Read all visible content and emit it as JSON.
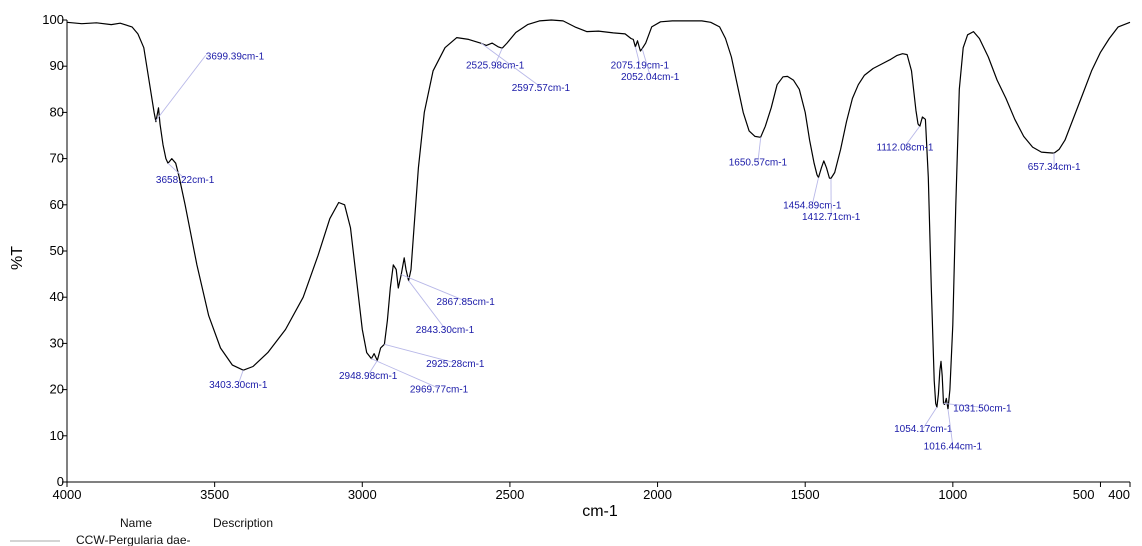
{
  "chart_data": {
    "type": "line",
    "xlabel": "cm-1",
    "ylabel": "%T",
    "xlim": [
      4000,
      400
    ],
    "ylim": [
      0,
      100
    ],
    "xticks": [
      {
        "v": 4000,
        "t": "4000"
      },
      {
        "v": 3500,
        "t": "3500"
      },
      {
        "v": 3000,
        "t": "3000"
      },
      {
        "v": 2500,
        "t": "2500"
      },
      {
        "v": 2000,
        "t": "2000"
      },
      {
        "v": 1500,
        "t": "1500"
      },
      {
        "v": 1000,
        "t": "1000"
      },
      {
        "v": 500,
        "t": "500"
      },
      {
        "v": 400,
        "t": "400"
      }
    ],
    "yticks": [
      {
        "v": 0,
        "t": "0"
      },
      {
        "v": 10,
        "t": "10"
      },
      {
        "v": 20,
        "t": "20"
      },
      {
        "v": 30,
        "t": "30"
      },
      {
        "v": 40,
        "t": "40"
      },
      {
        "v": 50,
        "t": "50"
      },
      {
        "v": 60,
        "t": "60"
      },
      {
        "v": 70,
        "t": "70"
      },
      {
        "v": 80,
        "t": "80"
      },
      {
        "v": 90,
        "t": "90"
      },
      {
        "v": 100,
        "t": "100"
      }
    ],
    "grid": false,
    "series": [
      {
        "name": "CCW-Pergularia dae-",
        "color": "#000000",
        "points": [
          [
            4000,
            99.5
          ],
          [
            3950,
            99.2
          ],
          [
            3900,
            99.4
          ],
          [
            3850,
            99
          ],
          [
            3820,
            99.3
          ],
          [
            3780,
            98.5
          ],
          [
            3760,
            97
          ],
          [
            3740,
            94
          ],
          [
            3720,
            86
          ],
          [
            3705,
            80
          ],
          [
            3699,
            78
          ],
          [
            3690,
            81
          ],
          [
            3685,
            77.5
          ],
          [
            3675,
            73
          ],
          [
            3665,
            70
          ],
          [
            3658,
            69
          ],
          [
            3645,
            70
          ],
          [
            3632,
            69
          ],
          [
            3620,
            66
          ],
          [
            3600,
            60
          ],
          [
            3560,
            47
          ],
          [
            3520,
            36
          ],
          [
            3480,
            29
          ],
          [
            3440,
            25.3
          ],
          [
            3403,
            24.2
          ],
          [
            3370,
            25
          ],
          [
            3320,
            28
          ],
          [
            3260,
            33
          ],
          [
            3200,
            40
          ],
          [
            3150,
            49
          ],
          [
            3110,
            57
          ],
          [
            3080,
            60.5
          ],
          [
            3060,
            60
          ],
          [
            3040,
            55
          ],
          [
            3020,
            44
          ],
          [
            3000,
            33
          ],
          [
            2985,
            28
          ],
          [
            2969,
            26.7
          ],
          [
            2960,
            27.8
          ],
          [
            2949,
            26.3
          ],
          [
            2938,
            29
          ],
          [
            2925,
            29.8
          ],
          [
            2915,
            35
          ],
          [
            2905,
            42
          ],
          [
            2895,
            47
          ],
          [
            2885,
            46
          ],
          [
            2878,
            42
          ],
          [
            2868,
            45
          ],
          [
            2858,
            48.5
          ],
          [
            2852,
            46
          ],
          [
            2843,
            43.6
          ],
          [
            2835,
            46
          ],
          [
            2825,
            55
          ],
          [
            2810,
            68
          ],
          [
            2790,
            80
          ],
          [
            2760,
            89
          ],
          [
            2720,
            94
          ],
          [
            2680,
            96.2
          ],
          [
            2640,
            95.8
          ],
          [
            2600,
            95
          ],
          [
            2580,
            94.5
          ],
          [
            2560,
            95
          ],
          [
            2540,
            94.2
          ],
          [
            2526,
            93.9
          ],
          [
            2510,
            95
          ],
          [
            2480,
            97.3
          ],
          [
            2440,
            99
          ],
          [
            2400,
            99.8
          ],
          [
            2360,
            100
          ],
          [
            2320,
            99.8
          ],
          [
            2280,
            98.5
          ],
          [
            2240,
            97.5
          ],
          [
            2200,
            97.6
          ],
          [
            2150,
            97.2
          ],
          [
            2110,
            97
          ],
          [
            2090,
            96
          ],
          [
            2082,
            95.8
          ],
          [
            2075,
            94.2
          ],
          [
            2068,
            95.5
          ],
          [
            2058,
            93.3
          ],
          [
            2052,
            93.8
          ],
          [
            2040,
            95
          ],
          [
            2020,
            98.5
          ],
          [
            1990,
            99.6
          ],
          [
            1950,
            99.8
          ],
          [
            1900,
            99.8
          ],
          [
            1850,
            99.8
          ],
          [
            1820,
            99.5
          ],
          [
            1790,
            98.5
          ],
          [
            1770,
            96
          ],
          [
            1750,
            92
          ],
          [
            1730,
            86
          ],
          [
            1710,
            80
          ],
          [
            1690,
            76
          ],
          [
            1670,
            74.8
          ],
          [
            1651,
            74.6
          ],
          [
            1635,
            77
          ],
          [
            1615,
            81
          ],
          [
            1595,
            86
          ],
          [
            1575,
            87.7
          ],
          [
            1560,
            87.8
          ],
          [
            1540,
            87
          ],
          [
            1520,
            85
          ],
          [
            1500,
            80
          ],
          [
            1485,
            74
          ],
          [
            1470,
            69
          ],
          [
            1460,
            66.5
          ],
          [
            1455,
            65.9
          ],
          [
            1445,
            68
          ],
          [
            1437,
            69.5
          ],
          [
            1428,
            68
          ],
          [
            1418,
            65.8
          ],
          [
            1413,
            65.7
          ],
          [
            1400,
            67
          ],
          [
            1380,
            72
          ],
          [
            1360,
            78
          ],
          [
            1340,
            83
          ],
          [
            1320,
            86
          ],
          [
            1300,
            88
          ],
          [
            1270,
            89.5
          ],
          [
            1240,
            90.5
          ],
          [
            1210,
            91.5
          ],
          [
            1190,
            92.3
          ],
          [
            1170,
            92.7
          ],
          [
            1155,
            92.5
          ],
          [
            1140,
            89
          ],
          [
            1125,
            80.5
          ],
          [
            1118,
            77.5
          ],
          [
            1112,
            77
          ],
          [
            1103,
            79
          ],
          [
            1093,
            78.5
          ],
          [
            1083,
            66
          ],
          [
            1073,
            42
          ],
          [
            1063,
            22
          ],
          [
            1058,
            17
          ],
          [
            1054,
            16.2
          ],
          [
            1049,
            19
          ],
          [
            1044,
            24
          ],
          [
            1040,
            26.1
          ],
          [
            1036,
            23
          ],
          [
            1031.5,
            17
          ],
          [
            1028,
            16.8
          ],
          [
            1022,
            18.1
          ],
          [
            1016.4,
            15.8
          ],
          [
            1010,
            20
          ],
          [
            1000,
            34
          ],
          [
            990,
            60
          ],
          [
            978,
            85
          ],
          [
            965,
            94
          ],
          [
            950,
            96.8
          ],
          [
            930,
            97.5
          ],
          [
            910,
            96
          ],
          [
            880,
            92
          ],
          [
            850,
            87
          ],
          [
            820,
            83
          ],
          [
            790,
            78.5
          ],
          [
            760,
            74.8
          ],
          [
            730,
            72.5
          ],
          [
            700,
            71.4
          ],
          [
            680,
            71.3
          ],
          [
            657,
            71.2
          ],
          [
            640,
            72
          ],
          [
            620,
            74
          ],
          [
            590,
            79
          ],
          [
            560,
            84
          ],
          [
            530,
            89
          ],
          [
            500,
            93
          ],
          [
            470,
            96
          ],
          [
            440,
            98.5
          ],
          [
            400,
            99.5
          ]
        ]
      }
    ],
    "peaks": [
      {
        "label": "3699.39cm-1",
        "x": 3699.39,
        "y": 78.2,
        "lx": 3530,
        "ly": 91.5,
        "anchor": "start"
      },
      {
        "label": "3658.22cm-1",
        "x": 3658.22,
        "y": 69.0,
        "lx": 3600,
        "ly": 64.7,
        "anchor": "middle"
      },
      {
        "label": "3403.30cm-1",
        "x": 3403.3,
        "y": 24.2,
        "lx": 3420,
        "ly": 20.3,
        "anchor": "middle"
      },
      {
        "label": "2948.98cm-1",
        "x": 2948.98,
        "y": 26.3,
        "lx": 2980,
        "ly": 22.3,
        "anchor": "middle"
      },
      {
        "label": "2969.77cm-1",
        "x": 2969.77,
        "y": 26.7,
        "lx": 2740,
        "ly": 19.4,
        "anchor": "middle"
      },
      {
        "label": "2925.28cm-1",
        "x": 2925.28,
        "y": 29.8,
        "lx": 2685,
        "ly": 24.9,
        "anchor": "middle"
      },
      {
        "label": "2867.85cm-1",
        "x": 2867.85,
        "y": 44.9,
        "lx": 2650,
        "ly": 38.3,
        "anchor": "middle"
      },
      {
        "label": "2843.30cm-1",
        "x": 2843.3,
        "y": 43.6,
        "lx": 2720,
        "ly": 32.3,
        "anchor": "middle"
      },
      {
        "label": "2525.98cm-1",
        "x": 2525.98,
        "y": 93.9,
        "lx": 2550,
        "ly": 89.5,
        "anchor": "middle"
      },
      {
        "label": "2597.57cm-1",
        "x": 2597.57,
        "y": 95.0,
        "lx": 2395,
        "ly": 84.6,
        "anchor": "middle"
      },
      {
        "label": "2075.19cm-1",
        "x": 2075.19,
        "y": 94.2,
        "lx": 2060,
        "ly": 89.5,
        "anchor": "middle"
      },
      {
        "label": "2052.04cm-1",
        "x": 2052.04,
        "y": 93.8,
        "lx": 2025,
        "ly": 87.0,
        "anchor": "middle"
      },
      {
        "label": "1650.57cm-1",
        "x": 1650.57,
        "y": 74.6,
        "lx": 1660,
        "ly": 68.5,
        "anchor": "middle"
      },
      {
        "label": "1454.89cm-1",
        "x": 1454.89,
        "y": 65.9,
        "lx": 1476,
        "ly": 59.2,
        "anchor": "middle"
      },
      {
        "label": "1412.71cm-1",
        "x": 1412.71,
        "y": 65.7,
        "lx": 1412,
        "ly": 56.7,
        "anchor": "middle"
      },
      {
        "label": "1112.08cm-1",
        "x": 1112.08,
        "y": 77.0,
        "lx": 1162,
        "ly": 71.8,
        "anchor": "middle"
      },
      {
        "label": "657.34cm-1",
        "x": 657.34,
        "y": 71.2,
        "lx": 657,
        "ly": 67.5,
        "anchor": "middle"
      },
      {
        "label": "1054.17cm-1",
        "x": 1054.17,
        "y": 16.2,
        "lx": 1100,
        "ly": 10.8,
        "anchor": "middle"
      },
      {
        "label": "1031.50cm-1",
        "x": 1031.5,
        "y": 17.0,
        "lx": 900,
        "ly": 15.3,
        "anchor": "middle"
      },
      {
        "label": "1016.44cm-1",
        "x": 1016.44,
        "y": 15.8,
        "lx": 1000,
        "ly": 7.0,
        "anchor": "middle"
      }
    ],
    "legend": {
      "header_name": "Name",
      "header_description": "Description",
      "entry_name": "CCW-Pergularia dae-"
    }
  }
}
